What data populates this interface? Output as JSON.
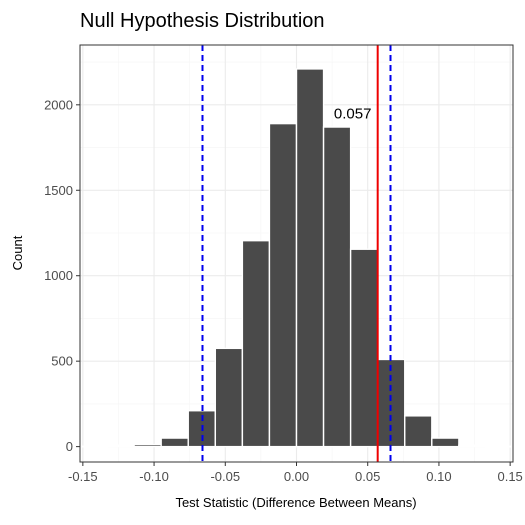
{
  "chart_data": {
    "type": "bar",
    "title": "Null Hypothesis Distribution",
    "xlabel": "Test Statistic (Difference Between Means)",
    "ylabel": "Count",
    "xlim": [
      -0.152,
      0.152
    ],
    "ylim": [
      -90,
      2350
    ],
    "x_ticks": [
      -0.15,
      -0.1,
      -0.05,
      0.0,
      0.05,
      0.1,
      0.15
    ],
    "x_tick_labels": [
      "-0.15",
      "-0.10",
      "-0.05",
      "0.00",
      "0.05",
      "0.10",
      "0.15"
    ],
    "y_ticks": [
      0,
      500,
      1000,
      1500,
      2000
    ],
    "y_tick_labels": [
      "0",
      "500",
      "1000",
      "1500",
      "2000"
    ],
    "grid": true,
    "bin_width": 0.019,
    "bins": [
      {
        "center": -0.1425,
        "count": 2
      },
      {
        "center": -0.1235,
        "count": 8
      },
      {
        "center": -0.1045,
        "count": 12
      },
      {
        "center": -0.0855,
        "count": 50
      },
      {
        "center": -0.0665,
        "count": 210
      },
      {
        "center": -0.0475,
        "count": 575
      },
      {
        "center": -0.0285,
        "count": 1205
      },
      {
        "center": -0.0095,
        "count": 1890
      },
      {
        "center": 0.0095,
        "count": 2210
      },
      {
        "center": 0.0285,
        "count": 1870
      },
      {
        "center": 0.0475,
        "count": 1155
      },
      {
        "center": 0.0665,
        "count": 510
      },
      {
        "center": 0.0855,
        "count": 180
      },
      {
        "center": 0.1045,
        "count": 50
      },
      {
        "center": 0.1235,
        "count": 8
      },
      {
        "center": 0.1425,
        "count": 2
      }
    ],
    "observed_value": 0.057,
    "observed_label": "0.057",
    "observed_label_y": 1950,
    "critical_values": [
      -0.066,
      0.066
    ],
    "colors": {
      "bar_fill": "#4a4a4a",
      "bar_outline": "#ffffff",
      "observed_line": "#ee0000",
      "critical_line": "#0000ee",
      "grid_major": "#ebebeb",
      "grid_minor": "#f5f5f5",
      "panel_border": "#333333"
    }
  }
}
